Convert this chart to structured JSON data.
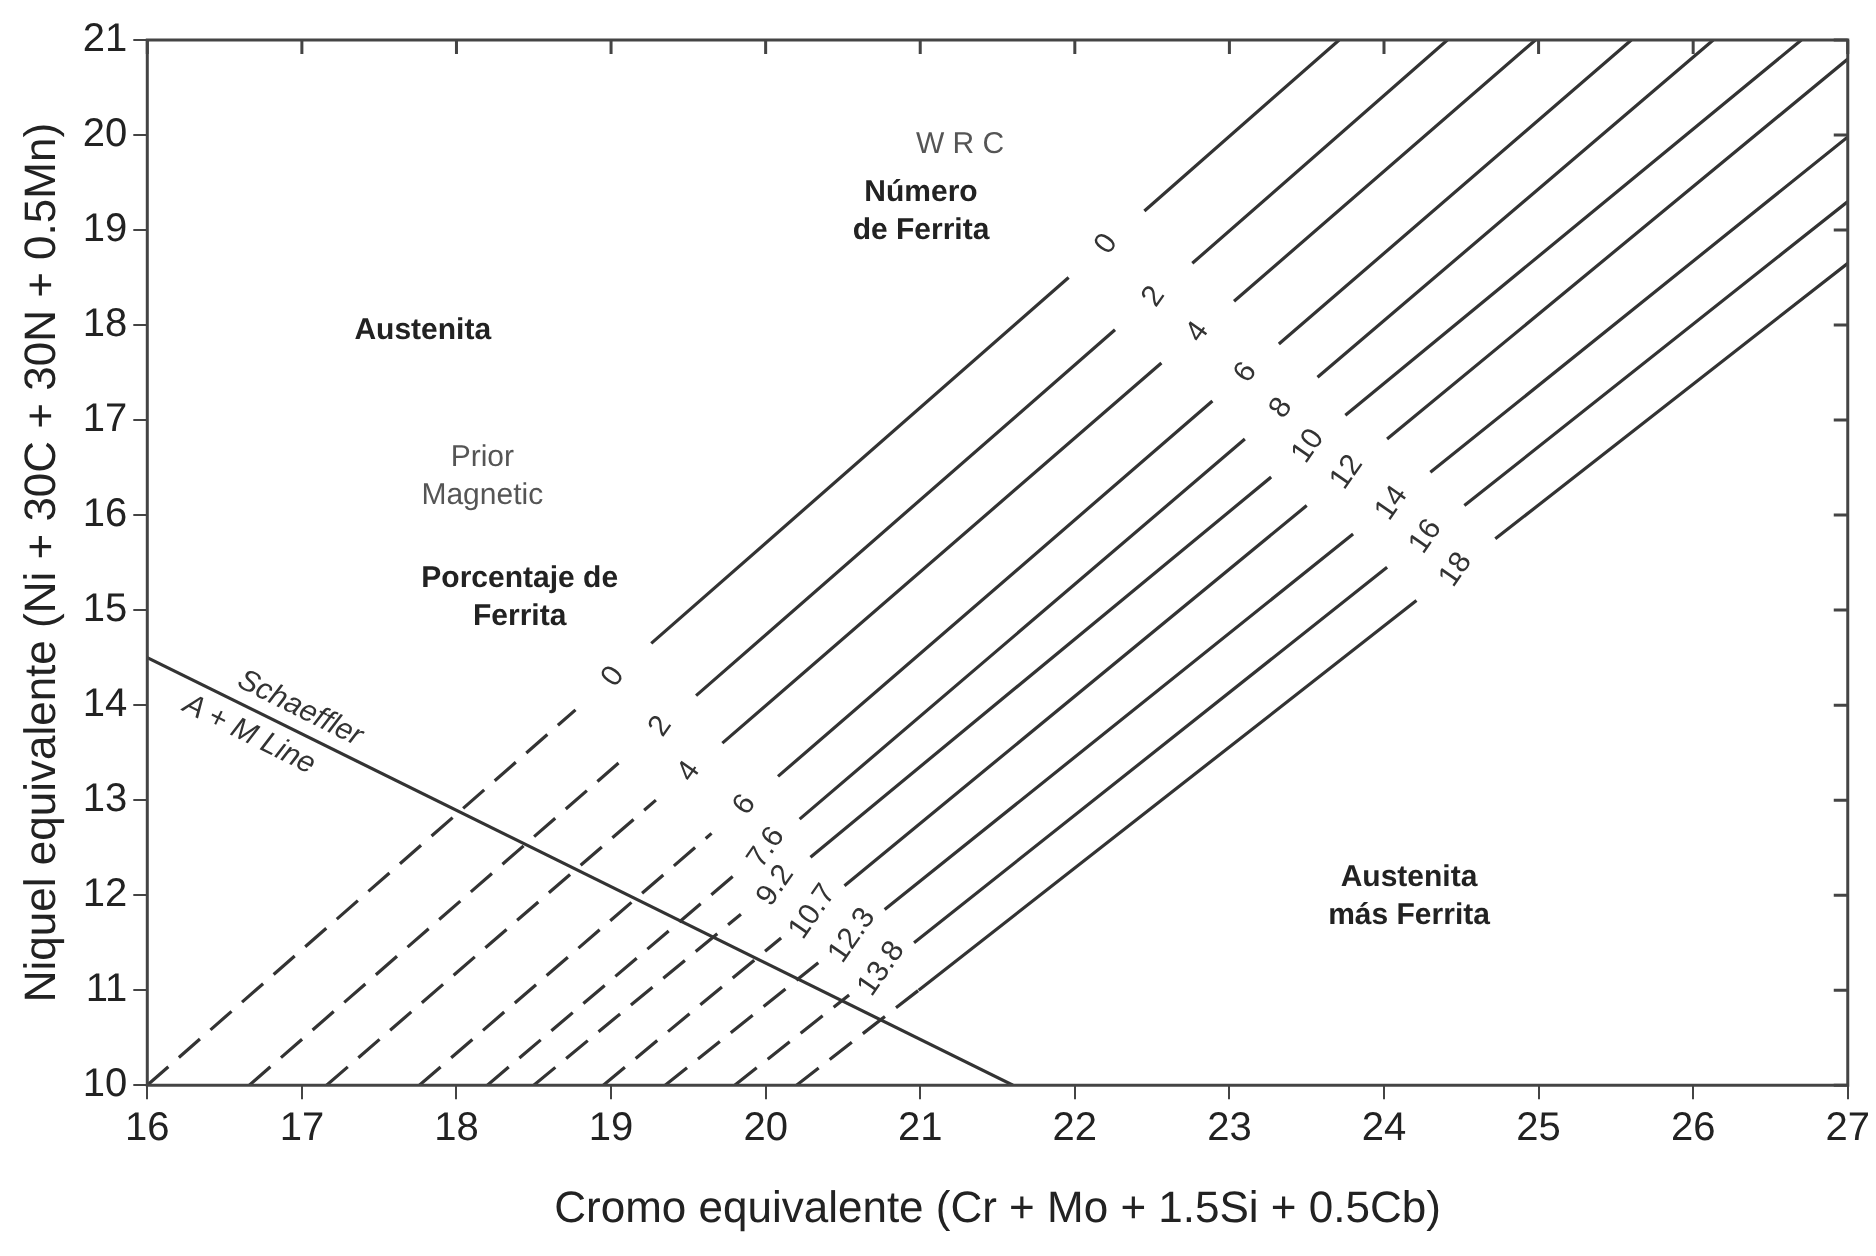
{
  "chart_data": {
    "type": "line",
    "xlabel": "Cromo equivalente (Cr + Mo + 1.5Si + 0.5Cb)",
    "ylabel": "Niquel equivalente (Ni + 30C + 30N + 0.5Mn)",
    "xlim": [
      16,
      27
    ],
    "ylim": [
      10,
      21
    ],
    "xticks": [
      16,
      17,
      18,
      19,
      20,
      21,
      22,
      23,
      24,
      25,
      26,
      27
    ],
    "yticks": [
      10,
      11,
      12,
      13,
      14,
      15,
      16,
      17,
      18,
      19,
      20,
      21
    ],
    "grid": false,
    "legend": false,
    "marker": "none",
    "series": [
      {
        "line_style": "dashed",
        "color": "#333333",
        "x": [
          16,
          18.77
        ],
        "values": [
          10,
          13.95
        ]
      },
      {
        "line_style": "solid",
        "color": "#333333",
        "x": [
          19.26,
          21.96,
          null,
          22.45,
          23.71
        ],
        "values": [
          14.65,
          18.5,
          null,
          19.2,
          21
        ]
      },
      {
        "line_style": "dashed",
        "color": "#333333",
        "x": [
          16.66,
          19.09
        ],
        "values": [
          10,
          13.45
        ]
      },
      {
        "line_style": "solid",
        "color": "#333333",
        "x": [
          19.55,
          22.26,
          null,
          22.76,
          24.41
        ],
        "values": [
          14.1,
          17.95,
          null,
          18.65,
          21
        ]
      },
      {
        "line_style": "dashed",
        "color": "#333333",
        "x": [
          17.16,
          19.29
        ],
        "values": [
          10,
          13
        ]
      },
      {
        "line_style": "solid",
        "color": "#333333",
        "x": [
          19.72,
          22.56,
          null,
          23.03,
          24.98
        ],
        "values": [
          13.6,
          17.6,
          null,
          18.25,
          21
        ]
      },
      {
        "line_style": "dashed",
        "color": "#333333",
        "x": [
          17.76,
          19.65
        ],
        "values": [
          10,
          12.65
        ]
      },
      {
        "line_style": "solid",
        "color": "#333333",
        "x": [
          20.08,
          22.89,
          null,
          23.32,
          25.6
        ],
        "values": [
          13.25,
          17.2,
          null,
          17.8,
          21
        ]
      },
      {
        "line_style": "dashed",
        "color": "#333333",
        "x": [
          18.2,
          19.79
        ],
        "values": [
          10,
          12.2
        ]
      },
      {
        "line_style": "solid",
        "color": "#333333",
        "x": [
          20.22,
          23.1,
          null,
          23.57,
          26.13
        ],
        "values": [
          12.8,
          16.8,
          null,
          17.45,
          21
        ]
      },
      {
        "line_style": "dashed",
        "color": "#333333",
        "x": [
          18.5,
          19.84
        ],
        "values": [
          10,
          11.8
        ]
      },
      {
        "line_style": "solid",
        "color": "#333333",
        "x": [
          20.29,
          23.27,
          null,
          23.75,
          26.7
        ],
        "values": [
          12.4,
          16.4,
          null,
          17.05,
          21
        ]
      },
      {
        "line_style": "dashed",
        "color": "#333333",
        "x": [
          18.95,
          20.1
        ],
        "values": [
          10,
          11.55
        ]
      },
      {
        "line_style": "solid",
        "color": "#333333",
        "x": [
          20.51,
          23.5,
          null,
          24.02,
          27
        ],
        "values": [
          12.1,
          16.1,
          null,
          16.8,
          20.8
        ]
      },
      {
        "line_style": "dashed",
        "color": "#333333",
        "x": [
          19.35,
          20.35
        ],
        "values": [
          10,
          11.3
        ]
      },
      {
        "line_style": "solid",
        "color": "#333333",
        "x": [
          20.77,
          23.8,
          null,
          24.3,
          27
        ],
        "values": [
          11.85,
          15.8,
          null,
          16.45,
          19.98
        ]
      },
      {
        "line_style": "dashed",
        "color": "#333333",
        "x": [
          19.8,
          20.54
        ],
        "values": [
          10,
          10.95
        ]
      },
      {
        "line_style": "solid",
        "color": "#333333",
        "x": [
          20.96,
          24.02,
          null,
          24.52,
          27
        ],
        "values": [
          11.5,
          15.45,
          null,
          16.1,
          19.3
        ]
      },
      {
        "line_style": "dashed",
        "color": "#333333",
        "x": [
          20.2,
          20.99
        ],
        "values": [
          10,
          11
        ]
      },
      {
        "line_style": "solid",
        "color": "#333333",
        "x": [
          20.99,
          24.21,
          null,
          24.72,
          27
        ],
        "values": [
          11,
          15.1,
          null,
          15.75,
          18.65
        ]
      },
      {
        "line_style": "solid",
        "color": "#333333",
        "x": [
          16,
          21.6
        ],
        "values": [
          14.5,
          10
        ]
      }
    ],
    "annotations": [
      "0",
      "2",
      "4",
      "6",
      "8",
      "10",
      "12",
      "14",
      "16",
      "18",
      "0",
      "2",
      "4",
      "6",
      "7.6",
      "9.2",
      "10.7",
      "12.3",
      "13.8",
      "Schaeffler",
      "A + M Line",
      "W R C",
      "Número\nde Ferrita",
      "Austenita",
      "Prior\nMagnetic",
      "Porcentaje de\nFerrita",
      "Austenita\nmás Ferrita"
    ]
  }
}
